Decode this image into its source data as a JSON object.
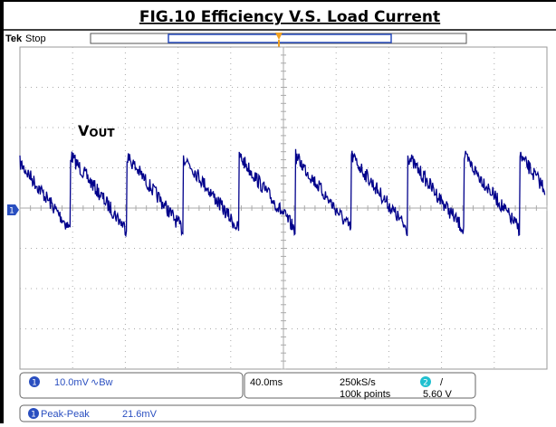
{
  "title": "FIG.10 Efficiency V.S. Load Current",
  "scope": {
    "brand": "Tek",
    "state": "Stop"
  },
  "trace_label": {
    "main": "V",
    "sub": "OUT"
  },
  "channel_marker": "1",
  "status": {
    "channel": {
      "number": "1",
      "scale": "10.0mV",
      "bandwidth": "∿Bw"
    },
    "timebase": "40.0ms",
    "sample_rate": "250kS/s",
    "record_length": "100k points",
    "trigger": {
      "source": "2",
      "slope": "/",
      "level": "5.60 V"
    }
  },
  "measurement": {
    "channel": "1",
    "name": "Peak-Peak",
    "value": "21.6mV"
  }
}
